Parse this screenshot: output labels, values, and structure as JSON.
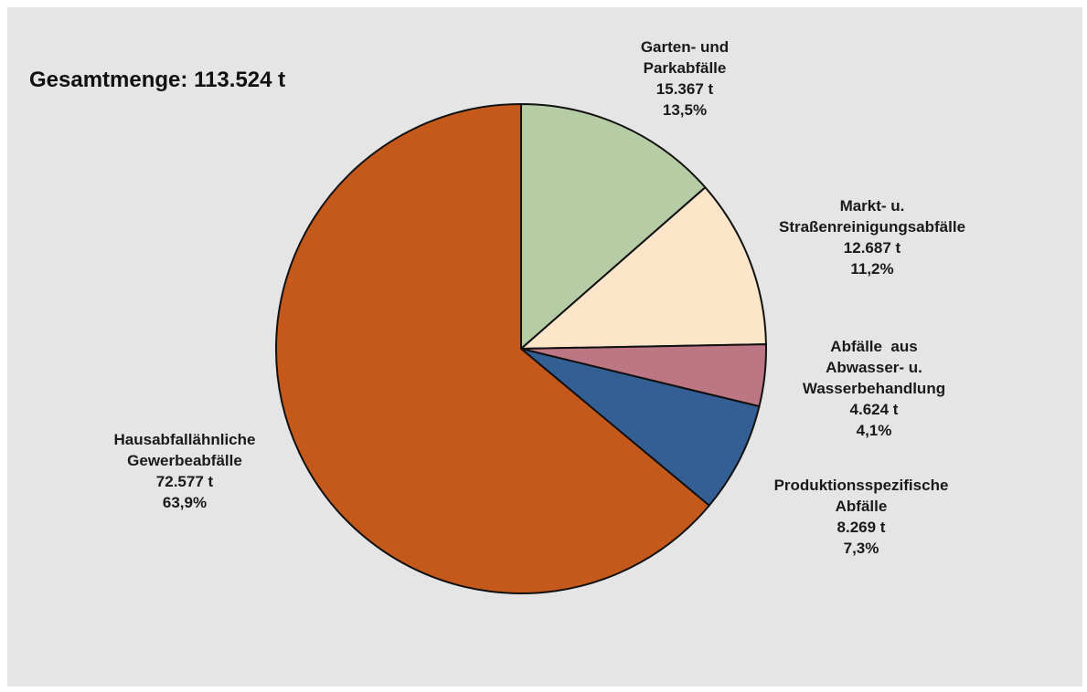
{
  "chart_data": {
    "type": "pie",
    "total_label": "Gesamtmenge:",
    "total_value": "113.524 t",
    "start_angle_deg": 0,
    "direction": "clockwise",
    "slices": [
      {
        "name_lines": [
          "Garten- und",
          "Parkabfälle"
        ],
        "amount": "15.367 t",
        "value": 15367,
        "percent": "13,5%",
        "color": "#b5cca5"
      },
      {
        "name_lines": [
          "Markt- u.",
          "Straßenreinigungsabfälle"
        ],
        "amount": "12.687 t",
        "value": 12687,
        "percent": "11,2%",
        "color": "#fce5c9"
      },
      {
        "name_lines": [
          "Abfälle  aus",
          "Abwasser- u.",
          "Wasserbehandlung"
        ],
        "amount": "4.624 t",
        "value": 4624,
        "percent": "4,1%",
        "color": "#bd7683"
      },
      {
        "name_lines": [
          "Produktionsspezifische",
          "Abfälle"
        ],
        "amount": "8.269 t",
        "value": 8269,
        "percent": "7,3%",
        "color": "#335f95"
      },
      {
        "name_lines": [
          "Hausabfallähnliche",
          "Gewerbeabfälle"
        ],
        "amount": "72.577 t",
        "value": 72577,
        "percent": "63,9%",
        "color": "#c5591c"
      }
    ]
  }
}
